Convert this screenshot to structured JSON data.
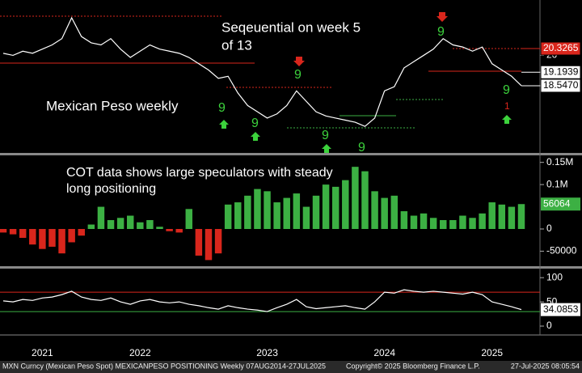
{
  "chart_data": [
    {
      "type": "line",
      "color": "#ffffff",
      "annotations": [
        "Seqeuential on week 5",
        "of 13",
        "Mexican Peso weekly"
      ],
      "sequential_counts": [
        "9",
        "9",
        "9",
        "9",
        "9",
        "9",
        "9",
        "1"
      ],
      "values": [
        20.1,
        20.0,
        20.2,
        20.1,
        20.3,
        20.5,
        20.8,
        21.8,
        20.9,
        20.6,
        20.5,
        20.8,
        20.3,
        19.9,
        20.2,
        20.5,
        20.3,
        20.2,
        20.1,
        19.9,
        19.6,
        19.3,
        18.9,
        19.0,
        18.2,
        17.6,
        17.3,
        17.0,
        17.2,
        17.6,
        18.3,
        17.8,
        17.3,
        17.1,
        17.0,
        16.9,
        16.8,
        16.6,
        17.0,
        18.3,
        18.5,
        19.4,
        19.7,
        20.0,
        20.3,
        20.8,
        20.5,
        20.4,
        20.2,
        20.4,
        19.6,
        19.3,
        19.0,
        18.547
      ],
      "ylim": [
        15.37,
        22.65
      ],
      "yticks": [
        20
      ],
      "price_tags": [
        {
          "value": 20.3265,
          "label": "20.3265",
          "color": "#d9261c"
        },
        {
          "value": 19.1939,
          "label": "19.1939",
          "color": "#ffffff"
        },
        {
          "value": 18.547,
          "label": "18.5470",
          "color": "#ffffff"
        }
      ]
    },
    {
      "type": "bar",
      "annotations": [
        "COT data shows large speculators with steady",
        "long positioning"
      ],
      "positive_color": "#3cb043",
      "negative_color": "#d9261c",
      "values": [
        -8000,
        -12000,
        -20000,
        -35000,
        -45000,
        -40000,
        -55000,
        -30000,
        -15000,
        10000,
        50000,
        20000,
        25000,
        30000,
        15000,
        20000,
        5000,
        -5000,
        -8000,
        45000,
        -60000,
        -70000,
        -55000,
        55000,
        60000,
        75000,
        90000,
        85000,
        60000,
        70000,
        80000,
        50000,
        75000,
        100000,
        95000,
        110000,
        140000,
        130000,
        85000,
        70000,
        75000,
        40000,
        30000,
        35000,
        25000,
        20000,
        20000,
        30000,
        25000,
        35000,
        60000,
        55000,
        50000,
        56064
      ],
      "ylim": [
        -82000,
        164000
      ],
      "yticks": [
        {
          "value": 150000,
          "label": "0.15M"
        },
        {
          "value": 100000,
          "label": "0.1M"
        },
        0,
        -50000
      ]
    },
    {
      "type": "line",
      "color": "#ffffff",
      "values": [
        52,
        50,
        55,
        53,
        58,
        60,
        65,
        72,
        60,
        55,
        53,
        58,
        50,
        45,
        52,
        55,
        50,
        48,
        50,
        45,
        42,
        38,
        35,
        42,
        38,
        35,
        33,
        30,
        38,
        45,
        55,
        40,
        36,
        38,
        40,
        42,
        38,
        35,
        50,
        70,
        68,
        75,
        72,
        70,
        72,
        70,
        68,
        66,
        70,
        65,
        50,
        45,
        40,
        34.0853
      ],
      "levels": [
        {
          "value": 70,
          "color": "#d9261c"
        },
        {
          "value": 30,
          "color": "#3cb043"
        }
      ],
      "ylim": [
        -15,
        117
      ],
      "yticks": [
        100,
        50,
        0
      ],
      "categories": [
        null,
        null,
        null,
        null,
        "2021",
        null,
        null,
        null,
        null,
        null,
        null,
        null,
        null,
        null,
        "2022",
        null,
        null,
        null,
        null,
        null,
        null,
        null,
        null,
        null,
        null,
        null,
        null,
        "2023",
        null,
        null,
        null,
        null,
        null,
        null,
        null,
        null,
        null,
        null,
        null,
        "2024",
        null,
        null,
        null,
        null,
        null,
        null,
        null,
        null,
        null,
        null,
        "2025",
        null,
        null,
        null
      ]
    }
  ],
  "footer": {
    "left": "MXN Curncy (Mexican Peso Spot) MEXICANPESO POSITIONING  Weekly 07AUG2014-27JUL2025",
    "center": "Copyright© 2025 Bloomberg Finance L.P.",
    "right": "27-Jul-2025 08:05:54"
  }
}
